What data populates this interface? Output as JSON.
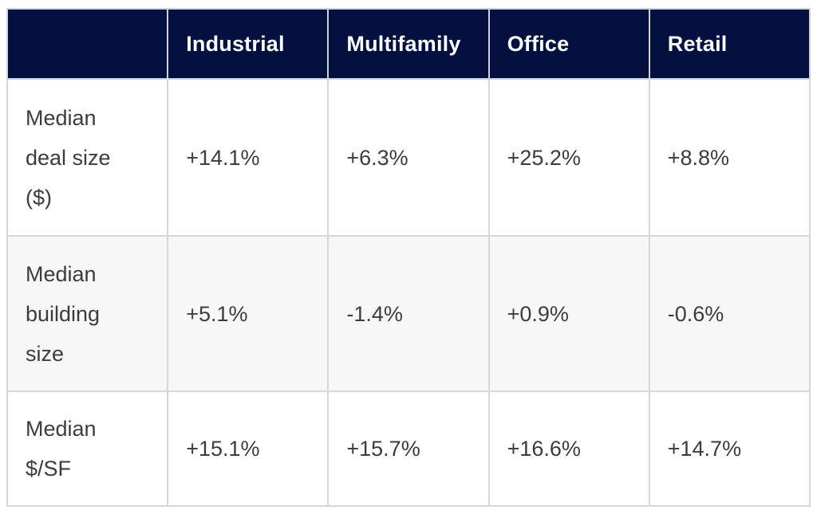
{
  "table": {
    "columns": [
      "",
      "Industrial",
      "Multifamily",
      "Office",
      "Retail"
    ],
    "rows": [
      {
        "label": "Median\ndeal size\n($)",
        "values": [
          "+14.1%",
          "+6.3%",
          "+25.2%",
          "+8.8%"
        ]
      },
      {
        "label": "Median\nbuilding\nsize",
        "values": [
          "+5.1%",
          "-1.4%",
          "+0.9%",
          "-0.6%"
        ]
      },
      {
        "label": "Median\n$/SF",
        "values": [
          "+15.1%",
          "+15.7%",
          "+16.6%",
          "+14.7%"
        ]
      }
    ]
  },
  "colors": {
    "header_bg": "#041040",
    "header_text": "#ffffff",
    "body_text": "#3c3c3c",
    "row_bg": "#ffffff",
    "row_alt_bg": "#f7f7f7",
    "border": "#d5d7d9"
  },
  "chart_data": {
    "type": "table",
    "title": "",
    "columns": [
      "Industrial",
      "Multifamily",
      "Office",
      "Retail"
    ],
    "row_labels": [
      "Median deal size ($)",
      "Median building size",
      "Median $/SF"
    ],
    "values_pct": [
      [
        14.1,
        6.3,
        25.2,
        8.8
      ],
      [
        5.1,
        -1.4,
        0.9,
        -0.6
      ],
      [
        15.1,
        15.7,
        16.6,
        14.7
      ]
    ]
  }
}
